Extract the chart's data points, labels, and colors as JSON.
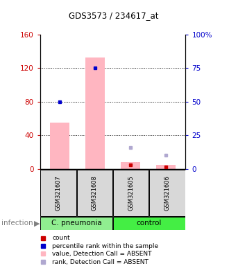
{
  "title": "GDS3573 / 234617_at",
  "samples": [
    "GSM321607",
    "GSM321608",
    "GSM321605",
    "GSM321606"
  ],
  "ylim_left": [
    0,
    160
  ],
  "ylim_right": [
    0,
    100
  ],
  "yticks_left": [
    0,
    40,
    80,
    120,
    160
  ],
  "yticks_right": [
    0,
    25,
    50,
    75,
    100
  ],
  "yticklabels_left": [
    "0",
    "40",
    "80",
    "120",
    "160"
  ],
  "yticklabels_right": [
    "0",
    "25",
    "50",
    "75",
    "100%"
  ],
  "bar_values": [
    55,
    133,
    8,
    5
  ],
  "bar_color_absent": "#FFB6C1",
  "dot_red_values": [
    null,
    null,
    5,
    2
  ],
  "dot_red_color": "#CC0000",
  "dot_blue_values": [
    50,
    75,
    null,
    null
  ],
  "dot_blue_color": "#0000CC",
  "dot_pink_values": [
    null,
    null,
    16,
    10
  ],
  "dot_pink_color": "#B0A8D0",
  "grid_yticks": [
    40,
    80,
    120
  ],
  "legend_items": [
    {
      "color": "#CC0000",
      "label": "count"
    },
    {
      "color": "#0000CC",
      "label": "percentile rank within the sample"
    },
    {
      "color": "#FFB6C1",
      "label": "value, Detection Call = ABSENT"
    },
    {
      "color": "#B0A8D0",
      "label": "rank, Detection Call = ABSENT"
    }
  ],
  "left_color": "#CC0000",
  "right_color": "#0000CC",
  "bg_gray": "#D8D8D8",
  "group_cpneu_color": "#90EE90",
  "group_control_color": "#44EE44"
}
